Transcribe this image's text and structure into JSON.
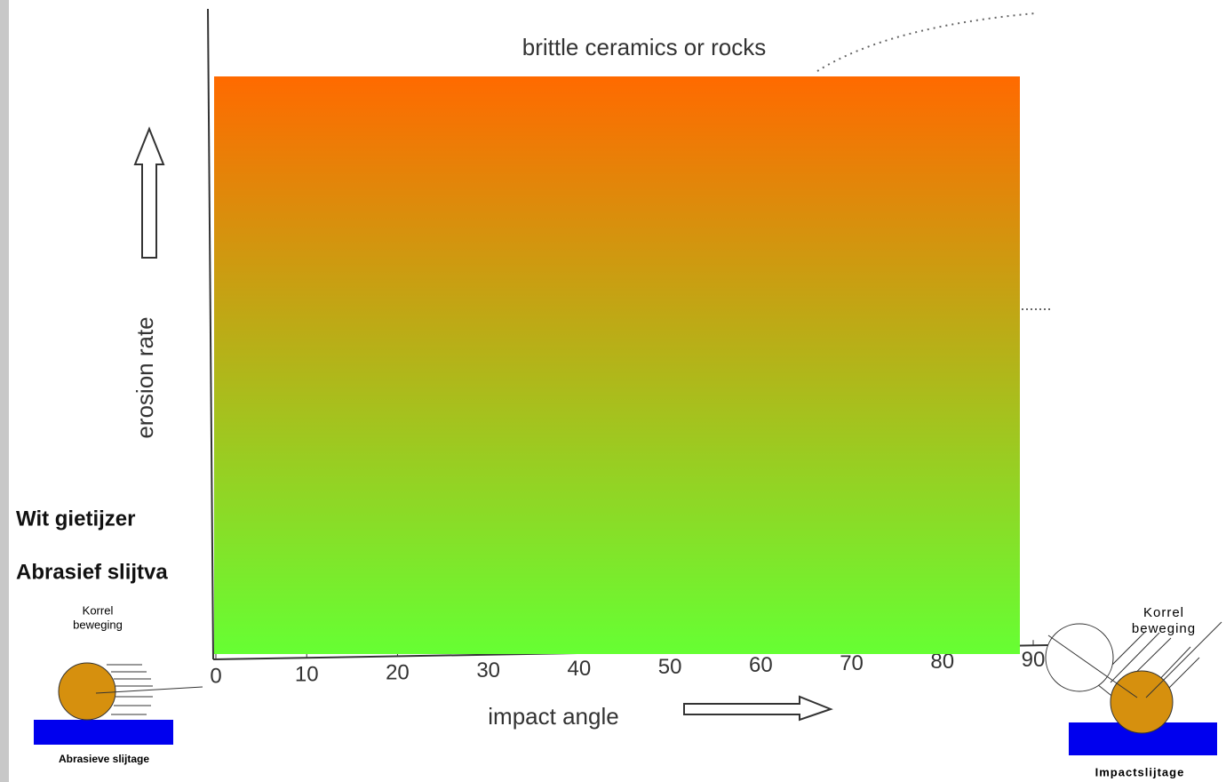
{
  "chart_data": {
    "type": "line",
    "title": "brittle ceramics or rocks",
    "x_label": "impact angle",
    "y_label": "erosion rate",
    "xlim": [
      0,
      90
    ],
    "xticks": [
      0,
      10,
      20,
      30,
      40,
      50,
      60,
      70,
      80,
      90
    ]
  },
  "slide": {
    "heading": "Wit gietijzer",
    "subheading": "Abrasief slijtva",
    "left_figure": {
      "label_top": [
        "Korrel",
        "beweging"
      ],
      "caption": "Abrasieve slijtage"
    },
    "right_figure": {
      "label_top": [
        "Korrel",
        "beweging"
      ],
      "caption": "Impactslijtage"
    }
  }
}
